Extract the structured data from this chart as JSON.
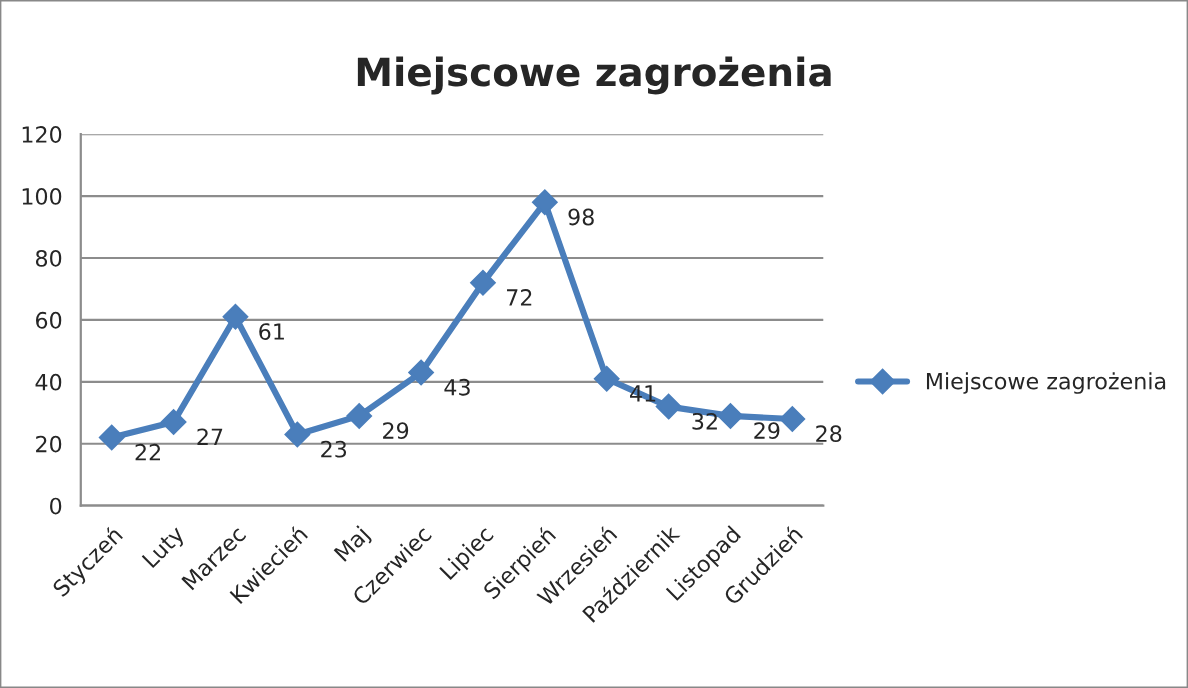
{
  "chart_data": {
    "type": "line",
    "title": "Miejscowe zagrożenia",
    "categories": [
      "Styczeń",
      "Luty",
      "Marzec",
      "Kwiecień",
      "Maj",
      "Czerwiec",
      "Lipiec",
      "Sierpień",
      "Wrzesień",
      "Październik",
      "Listopad",
      "Grudzień"
    ],
    "series": [
      {
        "name": "Miejscowe zagrożenia",
        "color": "#4a7ebb",
        "values": [
          22,
          27,
          61,
          23,
          29,
          43,
          72,
          98,
          41,
          32,
          29,
          28
        ]
      }
    ],
    "ylim": [
      0,
      120
    ],
    "yticks": [
      0,
      20,
      40,
      60,
      80,
      100,
      120
    ],
    "grid": "y",
    "legend": "right",
    "marker": "diamond",
    "line_style": "solid",
    "data_labels": true
  }
}
